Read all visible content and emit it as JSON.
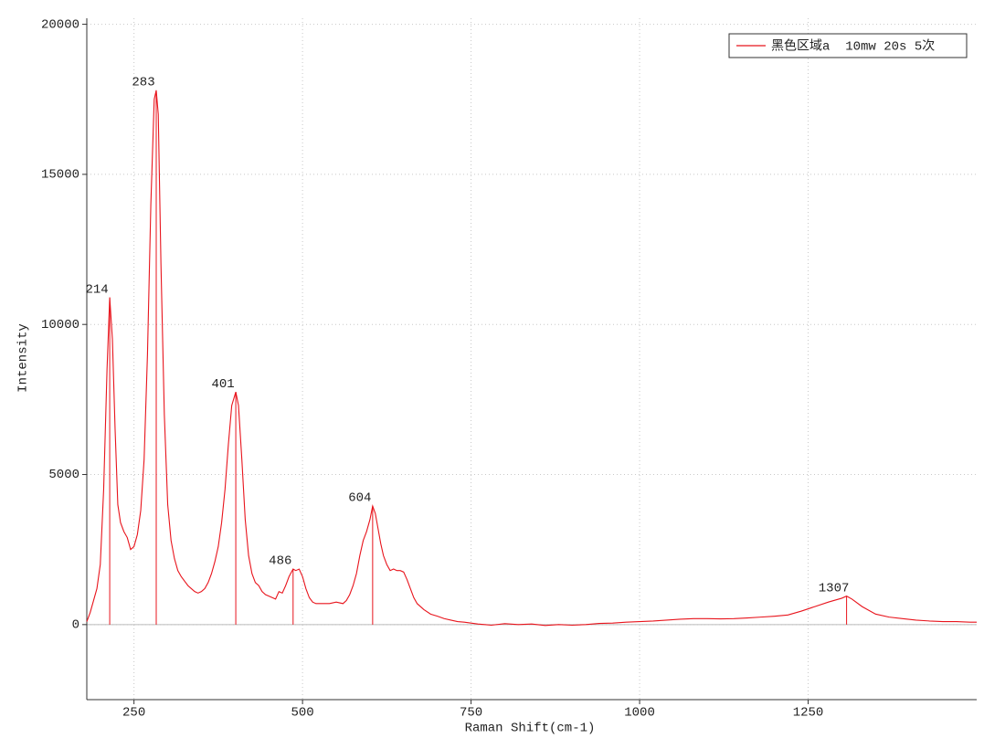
{
  "chart_data": {
    "type": "line",
    "xlabel": "Raman Shift(cm-1)",
    "ylabel": "Intensity",
    "x": [
      180,
      185,
      190,
      195,
      200,
      205,
      210,
      214,
      218,
      222,
      226,
      230,
      235,
      240,
      245,
      250,
      255,
      260,
      265,
      270,
      275,
      280,
      283,
      286,
      290,
      295,
      300,
      305,
      310,
      315,
      320,
      325,
      330,
      335,
      340,
      345,
      350,
      355,
      360,
      365,
      370,
      375,
      380,
      385,
      390,
      395,
      401,
      405,
      410,
      415,
      420,
      425,
      430,
      435,
      440,
      445,
      450,
      455,
      460,
      465,
      470,
      475,
      480,
      486,
      490,
      495,
      500,
      505,
      510,
      515,
      520,
      530,
      540,
      550,
      560,
      565,
      570,
      575,
      580,
      585,
      590,
      595,
      600,
      604,
      608,
      612,
      616,
      620,
      625,
      630,
      635,
      640,
      645,
      650,
      655,
      660,
      665,
      670,
      680,
      690,
      700,
      710,
      720,
      730,
      740,
      750,
      760,
      770,
      780,
      800,
      820,
      840,
      860,
      880,
      900,
      920,
      940,
      960,
      980,
      1000,
      1020,
      1040,
      1060,
      1080,
      1100,
      1120,
      1140,
      1160,
      1180,
      1200,
      1220,
      1240,
      1260,
      1280,
      1300,
      1307,
      1315,
      1330,
      1350,
      1370,
      1390,
      1410,
      1430,
      1450,
      1470,
      1490,
      1500
    ],
    "series": [
      {
        "name": "黑色区域a  10mw 20s 5次",
        "color": "#e8141c",
        "values": [
          100,
          400,
          800,
          1200,
          2000,
          4500,
          8500,
          10900,
          9500,
          6500,
          4000,
          3400,
          3100,
          2900,
          2500,
          2600,
          3000,
          3800,
          5500,
          9000,
          14000,
          17500,
          17800,
          17000,
          12000,
          7000,
          4000,
          2800,
          2200,
          1800,
          1600,
          1450,
          1300,
          1200,
          1100,
          1050,
          1100,
          1200,
          1400,
          1700,
          2100,
          2600,
          3400,
          4500,
          6000,
          7300,
          7750,
          7300,
          5500,
          3500,
          2300,
          1700,
          1400,
          1300,
          1100,
          1000,
          950,
          900,
          850,
          1100,
          1050,
          1300,
          1600,
          1850,
          1800,
          1850,
          1600,
          1200,
          900,
          750,
          700,
          700,
          700,
          750,
          700,
          800,
          1000,
          1300,
          1700,
          2300,
          2800,
          3100,
          3500,
          3950,
          3700,
          3200,
          2700,
          2300,
          2000,
          1800,
          1850,
          1800,
          1800,
          1750,
          1500,
          1200,
          900,
          700,
          500,
          350,
          280,
          200,
          150,
          100,
          80,
          50,
          20,
          0,
          -20,
          30,
          0,
          20,
          -30,
          0,
          -20,
          0,
          40,
          50,
          80,
          100,
          120,
          150,
          180,
          200,
          200,
          190,
          200,
          220,
          250,
          280,
          320,
          450,
          600,
          750,
          880,
          950,
          850,
          600,
          350,
          250,
          200,
          150,
          120,
          100,
          100,
          80,
          80
        ]
      }
    ],
    "peaks": [
      214,
      283,
      401,
      486,
      604,
      1307
    ],
    "xlim": [
      180,
      1500
    ],
    "ylim": [
      -2500,
      20200
    ],
    "xticks": [
      250,
      500,
      750,
      1000,
      1250
    ],
    "yticks": [
      0,
      5000,
      10000,
      15000,
      20000
    ],
    "grid": true,
    "legend": "upper right"
  }
}
